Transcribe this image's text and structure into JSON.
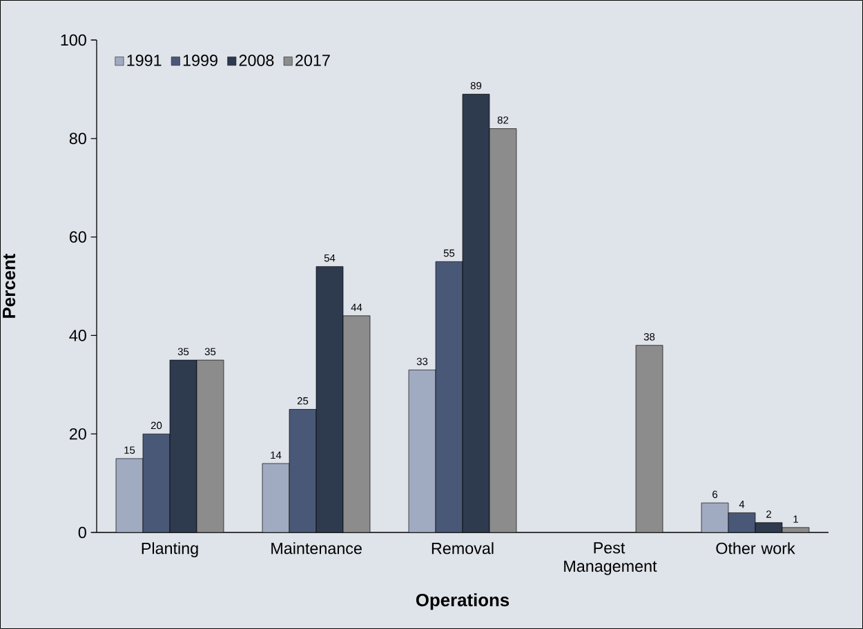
{
  "chart_data": {
    "type": "bar",
    "xlabel": "Operations",
    "ylabel": "Percent",
    "categories": [
      "Planting",
      "Maintenance",
      "Removal",
      "Pest Management",
      "Other work"
    ],
    "series": [
      {
        "name": "1991",
        "color": "#a0aac0",
        "values": [
          15,
          14,
          33,
          null,
          6
        ]
      },
      {
        "name": "1999",
        "color": "#4a5878",
        "values": [
          20,
          25,
          55,
          null,
          4
        ]
      },
      {
        "name": "2008",
        "color": "#2e3a4e",
        "values": [
          35,
          54,
          89,
          null,
          2
        ]
      },
      {
        "name": "2017",
        "color": "#8c8c8c",
        "values": [
          35,
          44,
          82,
          38,
          1
        ]
      }
    ],
    "ylim": [
      0,
      100
    ],
    "yticks": [
      0,
      20,
      40,
      60,
      80,
      100
    ],
    "data_labels": true,
    "grid": false,
    "legend": "top left"
  }
}
